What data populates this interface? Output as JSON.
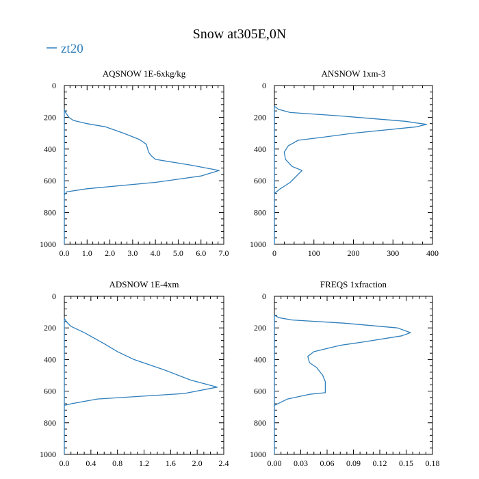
{
  "figure": {
    "title": "Snow at305E,0N",
    "legend_label": "zt20",
    "series_color": "#2e7ebb"
  },
  "chart_data": [
    {
      "type": "line",
      "title": "AQSNOW  1E-6xkg/kg",
      "xlim": [
        0,
        7.0
      ],
      "ylim": [
        1000,
        0
      ],
      "xticks": [
        0,
        1,
        2,
        3,
        4,
        5,
        6,
        7
      ],
      "xtick_labels": [
        "0.0",
        "1.0",
        "2.0",
        "3.0",
        "4.0",
        "5.0",
        "6.0",
        "7.0"
      ],
      "yticks": [
        0,
        200,
        400,
        600,
        800,
        1000
      ],
      "ytick_labels": [
        "0",
        "200",
        "400",
        "600",
        "800",
        "1000"
      ],
      "series": [
        {
          "name": "zt20",
          "x": [
            0,
            0,
            0.05,
            0.2,
            0.4,
            1.0,
            1.8,
            2.6,
            3.3,
            3.6,
            3.7,
            3.8,
            4.0,
            5.5,
            6.8,
            6.0,
            4.0,
            1.0,
            0.1,
            0,
            0
          ],
          "y": [
            1000,
            150,
            170,
            200,
            220,
            240,
            260,
            300,
            340,
            370,
            420,
            440,
            465,
            500,
            535,
            570,
            610,
            650,
            670,
            690,
            1000
          ]
        }
      ]
    },
    {
      "type": "line",
      "title": "ANSNOW  1xm-3",
      "xlim": [
        0,
        400
      ],
      "ylim": [
        1000,
        0
      ],
      "xticks": [
        0,
        100,
        200,
        300,
        400
      ],
      "xtick_labels": [
        "0",
        "100",
        "200",
        "300",
        "400"
      ],
      "yticks": [
        0,
        200,
        400,
        600,
        800,
        1000
      ],
      "ytick_labels": [
        "0",
        "200",
        "400",
        "600",
        "800",
        "1000"
      ],
      "series": [
        {
          "name": "zt20",
          "x": [
            0,
            0,
            10,
            40,
            160,
            330,
            385,
            360,
            200,
            125,
            60,
            35,
            25,
            28,
            45,
            70,
            40,
            15,
            0,
            0
          ],
          "y": [
            1000,
            130,
            150,
            170,
            190,
            225,
            245,
            260,
            300,
            325,
            345,
            380,
            420,
            465,
            510,
            535,
            610,
            650,
            680,
            1000
          ]
        }
      ]
    },
    {
      "type": "line",
      "title": "ADSNOW  1E-4xm",
      "xlim": [
        0,
        2.4
      ],
      "ylim": [
        1000,
        0
      ],
      "xticks": [
        0,
        0.4,
        0.8,
        1.2,
        1.6,
        2.0,
        2.4
      ],
      "xtick_labels": [
        "0.0",
        "0.4",
        "0.8",
        "1.2",
        "1.6",
        "2.0",
        "2.4"
      ],
      "yticks": [
        0,
        200,
        400,
        600,
        800,
        1000
      ],
      "ytick_labels": [
        "0",
        "200",
        "400",
        "600",
        "800",
        "1000"
      ],
      "series": [
        {
          "name": "zt20",
          "x": [
            0,
            0,
            0.03,
            0.1,
            0.3,
            0.6,
            0.8,
            1.05,
            1.5,
            1.9,
            2.3,
            1.8,
            0.5,
            0.1,
            0,
            0
          ],
          "y": [
            1000,
            140,
            160,
            190,
            230,
            300,
            350,
            400,
            465,
            530,
            575,
            615,
            650,
            680,
            690,
            1000
          ]
        }
      ]
    },
    {
      "type": "line",
      "title": "FREQS  1xfraction",
      "xlim": [
        0,
        0.18
      ],
      "ylim": [
        1000,
        0
      ],
      "xticks": [
        0,
        0.03,
        0.06,
        0.09,
        0.12,
        0.15,
        0.18
      ],
      "xtick_labels": [
        "0.00",
        "0.03",
        "0.06",
        "0.09",
        "0.12",
        "0.15",
        "0.18"
      ],
      "yticks": [
        0,
        200,
        400,
        600,
        800,
        1000
      ],
      "ytick_labels": [
        "0",
        "200",
        "400",
        "600",
        "800",
        "1000"
      ],
      "series": [
        {
          "name": "zt20",
          "x": [
            0,
            0,
            0.005,
            0.02,
            0.08,
            0.14,
            0.155,
            0.145,
            0.1,
            0.075,
            0.045,
            0.038,
            0.04,
            0.048,
            0.055,
            0.058,
            0.058,
            0.04,
            0.015,
            0,
            0
          ],
          "y": [
            1000,
            120,
            135,
            150,
            170,
            200,
            230,
            250,
            290,
            310,
            350,
            380,
            420,
            450,
            500,
            540,
            610,
            620,
            650,
            690,
            1000
          ]
        }
      ]
    }
  ]
}
